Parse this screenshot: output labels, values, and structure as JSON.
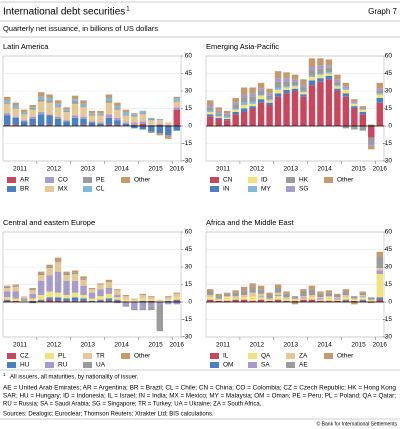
{
  "header": {
    "title": "International debt securities",
    "title_note": "1",
    "graph_label": "Graph 7",
    "subtitle": "Quarterly net issuance, in billions of US dollars"
  },
  "footnote": {
    "marker": "1",
    "text": "All issuers, all maturities, by nationality of issuer."
  },
  "abbreviations": [
    "AE = United Arab Emirates; AR = Argentina; BR = Brazil; CL = Chile; CN = China; CO = Colombia; CZ = Czech Republic; HK = Hong Kong",
    "SAR; HU = Hungary; ID = Indonesia; IL = Israel; IN = India; MX = Mexico; MY = Malaysia; OM = Oman; PE = Peru; PL = Poland; QA = Qatar;",
    "RU = Russia; SA = Saudi Arabia; SG = Singapore; TR = Turkey; UA = Ukraine; ZA = South Africa."
  ],
  "sources": "Sources: Dealogic; Euroclear; Thomson Reuters; Xtrakter Ltd; BIS calculations.",
  "copyright": "© Bank for International Settlements",
  "chart_data": [
    {
      "type": "bar",
      "stacked": true,
      "title": "Latin America",
      "grid": true,
      "categories": [
        "2011",
        null,
        null,
        null,
        "2012",
        null,
        null,
        null,
        "2013",
        null,
        null,
        null,
        "2014",
        null,
        null,
        null,
        "2015",
        null,
        null,
        null,
        "2016"
      ],
      "ylim": [
        -30,
        60
      ],
      "yticks": [
        -30,
        -15,
        0,
        15,
        30,
        45,
        60
      ],
      "series": [
        {
          "name": "AR",
          "color": "#c8475f",
          "values": [
            1,
            1,
            0,
            1,
            0,
            1,
            0,
            0,
            0,
            1,
            0,
            0,
            1,
            1,
            0,
            1,
            2,
            0,
            1,
            0,
            14
          ]
        },
        {
          "name": "BR",
          "color": "#4a7fc0",
          "values": [
            8,
            6,
            4,
            5,
            10,
            8,
            6,
            4,
            7,
            5,
            3,
            2,
            6,
            4,
            2,
            -2,
            -3,
            -5,
            -6,
            -8,
            -4
          ]
        },
        {
          "name": "CO",
          "color": "#a79bc9",
          "values": [
            2,
            1,
            1,
            2,
            2,
            1,
            2,
            1,
            2,
            2,
            1,
            1,
            3,
            2,
            1,
            2,
            2,
            1,
            1,
            1,
            2
          ]
        },
        {
          "name": "MX",
          "color": "#e6c896",
          "values": [
            8,
            7,
            5,
            6,
            9,
            10,
            8,
            7,
            10,
            8,
            5,
            6,
            10,
            7,
            6,
            5,
            6,
            4,
            3,
            2,
            5
          ]
        },
        {
          "name": "PE",
          "color": "#9b9b9b",
          "values": [
            1,
            1,
            1,
            1,
            2,
            2,
            1,
            1,
            2,
            1,
            1,
            1,
            2,
            1,
            1,
            1,
            1,
            1,
            0,
            0,
            1
          ]
        },
        {
          "name": "CL",
          "color": "#7fb9dc",
          "values": [
            2,
            2,
            1,
            1,
            2,
            2,
            2,
            1,
            2,
            2,
            1,
            1,
            2,
            2,
            2,
            1,
            2,
            1,
            1,
            0,
            2
          ]
        },
        {
          "name": "Other",
          "color": "#c49a6c",
          "values": [
            3,
            2,
            2,
            2,
            4,
            3,
            3,
            2,
            3,
            3,
            2,
            2,
            3,
            3,
            2,
            1,
            0,
            -1,
            -2,
            -3,
            1
          ]
        }
      ]
    },
    {
      "type": "bar",
      "stacked": true,
      "title": "Emerging Asia-Pacific",
      "grid": true,
      "categories": [
        "2011",
        null,
        null,
        null,
        "2012",
        null,
        null,
        null,
        "2013",
        null,
        null,
        null,
        "2014",
        null,
        null,
        null,
        "2015",
        null,
        null,
        null,
        "2016"
      ],
      "ylim": [
        -30,
        60
      ],
      "yticks": [
        -30,
        -15,
        0,
        15,
        30,
        45,
        60
      ],
      "series": [
        {
          "name": "CN",
          "color": "#c8475f",
          "values": [
            8,
            6,
            5,
            10,
            12,
            15,
            20,
            18,
            25,
            28,
            30,
            25,
            35,
            38,
            40,
            30,
            25,
            15,
            10,
            -10,
            20
          ]
        },
        {
          "name": "IN",
          "color": "#4a7fc0",
          "values": [
            2,
            1,
            1,
            2,
            3,
            2,
            3,
            2,
            3,
            3,
            2,
            2,
            4,
            3,
            3,
            2,
            3,
            2,
            2,
            1,
            4
          ]
        },
        {
          "name": "ID",
          "color": "#f2e27a",
          "values": [
            2,
            1,
            1,
            2,
            3,
            2,
            3,
            2,
            3,
            2,
            2,
            2,
            3,
            3,
            2,
            2,
            3,
            2,
            2,
            1,
            3
          ]
        },
        {
          "name": "MY",
          "color": "#7fb9dc",
          "values": [
            1,
            1,
            1,
            1,
            2,
            2,
            1,
            1,
            2,
            1,
            1,
            1,
            1,
            1,
            1,
            1,
            1,
            1,
            0,
            0,
            1
          ]
        },
        {
          "name": "HK",
          "color": "#9b9b9b",
          "values": [
            3,
            2,
            2,
            3,
            4,
            4,
            3,
            3,
            5,
            4,
            3,
            3,
            5,
            4,
            4,
            3,
            -2,
            -3,
            -4,
            -5,
            2
          ]
        },
        {
          "name": "SG",
          "color": "#a79bc9",
          "values": [
            2,
            2,
            1,
            2,
            3,
            3,
            2,
            2,
            3,
            3,
            2,
            2,
            3,
            3,
            2,
            2,
            2,
            1,
            1,
            -2,
            2
          ]
        },
        {
          "name": "Other",
          "color": "#c49a6c",
          "values": [
            4,
            3,
            2,
            4,
            6,
            5,
            5,
            4,
            6,
            5,
            4,
            5,
            7,
            6,
            5,
            4,
            3,
            2,
            2,
            -3,
            5
          ]
        }
      ]
    },
    {
      "type": "bar",
      "stacked": true,
      "title": "Central and eastern Europe",
      "grid": true,
      "categories": [
        "2011",
        null,
        null,
        null,
        "2012",
        null,
        null,
        null,
        "2013",
        null,
        null,
        null,
        "2014",
        null,
        null,
        null,
        "2015",
        null,
        null,
        null,
        "2016"
      ],
      "ylim": [
        -30,
        60
      ],
      "yticks": [
        -30,
        -15,
        0,
        15,
        30,
        45,
        60
      ],
      "series": [
        {
          "name": "CZ",
          "color": "#c8475f",
          "values": [
            1,
            1,
            0,
            1,
            1,
            2,
            1,
            1,
            1,
            1,
            0,
            1,
            1,
            1,
            0,
            0,
            0,
            1,
            0,
            0,
            1
          ]
        },
        {
          "name": "HU",
          "color": "#4a7fc0",
          "values": [
            1,
            0,
            0,
            -1,
            1,
            2,
            3,
            2,
            3,
            2,
            1,
            1,
            2,
            1,
            0,
            0,
            1,
            0,
            0,
            1,
            1
          ]
        },
        {
          "name": "PL",
          "color": "#f2e27a",
          "values": [
            2,
            2,
            1,
            2,
            4,
            5,
            4,
            3,
            4,
            3,
            2,
            3,
            4,
            2,
            2,
            1,
            2,
            1,
            1,
            1,
            2
          ]
        },
        {
          "name": "RU",
          "color": "#a79bc9",
          "values": [
            5,
            6,
            2,
            4,
            12,
            14,
            18,
            12,
            10,
            8,
            5,
            6,
            5,
            2,
            -3,
            -6,
            -5,
            -4,
            -3,
            -2,
            -2
          ]
        },
        {
          "name": "TR",
          "color": "#e6c896",
          "values": [
            3,
            4,
            2,
            3,
            5,
            6,
            8,
            5,
            6,
            5,
            3,
            4,
            5,
            4,
            3,
            2,
            3,
            2,
            1,
            2,
            3
          ]
        },
        {
          "name": "UA",
          "color": "#9b9b9b",
          "values": [
            1,
            1,
            0,
            1,
            1,
            1,
            1,
            1,
            1,
            1,
            0,
            0,
            0,
            -1,
            -1,
            -1,
            -2,
            -3,
            -22,
            0,
            0
          ]
        },
        {
          "name": "Other",
          "color": "#c49a6c",
          "values": [
            1,
            1,
            0,
            1,
            2,
            2,
            3,
            2,
            2,
            2,
            1,
            1,
            2,
            1,
            1,
            0,
            1,
            1,
            0,
            1,
            1
          ]
        }
      ]
    },
    {
      "type": "bar",
      "stacked": true,
      "title": "Africa and the Middle East",
      "grid": true,
      "categories": [
        "2011",
        null,
        null,
        null,
        "2012",
        null,
        null,
        null,
        "2013",
        null,
        null,
        null,
        "2014",
        null,
        null,
        null,
        "2015",
        null,
        null,
        null,
        "2016"
      ],
      "ylim": [
        -30,
        60
      ],
      "yticks": [
        -30,
        -15,
        0,
        15,
        30,
        45,
        60
      ],
      "series": [
        {
          "name": "IL",
          "color": "#c8475f",
          "values": [
            2,
            1,
            1,
            2,
            2,
            1,
            2,
            1,
            2,
            1,
            1,
            2,
            2,
            1,
            1,
            1,
            1,
            1,
            1,
            0,
            2
          ]
        },
        {
          "name": "OM",
          "color": "#4a7fc0",
          "values": [
            0,
            0,
            0,
            0,
            0,
            0,
            0,
            0,
            0,
            0,
            0,
            0,
            0,
            0,
            0,
            0,
            1,
            0,
            1,
            0,
            2
          ]
        },
        {
          "name": "QA",
          "color": "#f2e27a",
          "values": [
            2,
            1,
            3,
            1,
            2,
            4,
            2,
            1,
            3,
            1,
            1,
            1,
            2,
            1,
            3,
            1,
            2,
            1,
            2,
            1,
            20
          ]
        },
        {
          "name": "SA",
          "color": "#a79bc9",
          "values": [
            0,
            0,
            0,
            0,
            0,
            0,
            1,
            0,
            1,
            0,
            0,
            1,
            0,
            1,
            0,
            1,
            0,
            0,
            1,
            0,
            3
          ]
        },
        {
          "name": "ZA",
          "color": "#e6c896",
          "values": [
            2,
            1,
            1,
            2,
            2,
            3,
            2,
            1,
            2,
            2,
            1,
            1,
            2,
            1,
            1,
            1,
            2,
            1,
            1,
            1,
            2
          ]
        },
        {
          "name": "AE",
          "color": "#9b9b9b",
          "values": [
            3,
            2,
            2,
            3,
            4,
            5,
            4,
            3,
            4,
            3,
            2,
            4,
            5,
            3,
            3,
            2,
            3,
            2,
            2,
            2,
            10
          ]
        },
        {
          "name": "Other",
          "color": "#c49a6c",
          "values": [
            2,
            2,
            1,
            2,
            3,
            3,
            3,
            2,
            3,
            2,
            -2,
            2,
            3,
            2,
            2,
            1,
            2,
            -2,
            1,
            -1,
            4
          ]
        }
      ]
    }
  ]
}
